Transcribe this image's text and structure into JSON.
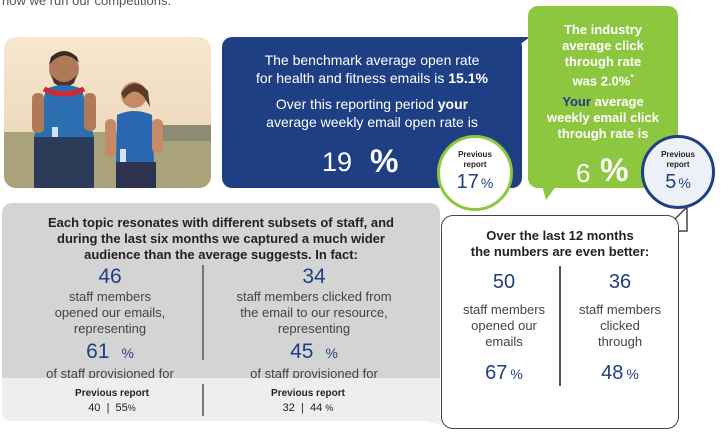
{
  "intro": {
    "text": "how we run our competitions."
  },
  "benchmark": {
    "line1": "The benchmark average open rate",
    "line2_pre": "for health and fitness emails is",
    "line2_value": "15.1%",
    "line3": "Over this reporting period",
    "line3_bold": "your",
    "line4": "average weekly email open rate is",
    "big_value": "19",
    "big_unit": "%"
  },
  "benchmark_previous": {
    "label_1": "Previous",
    "label_2": "report",
    "value": "17",
    "unit": "%"
  },
  "industry": {
    "line1": "The industry",
    "line2": "average click",
    "line3": "through rate",
    "line4_pre": "was",
    "line4_value": "2.0%",
    "line4_note": "*",
    "line5_bold": "Your",
    "line5_rest": "average",
    "line6": "weekly email click",
    "line7": "through rate is",
    "big_value": "6",
    "big_unit": "%"
  },
  "industry_previous": {
    "label_1": "Previous",
    "label_2": "report",
    "value": "5",
    "unit": "%"
  },
  "six_months": {
    "heading_1": "Each topic resonates with different subsets of staff, and",
    "heading_2": "during the last six months we captured a much wider",
    "heading_3": "audience than the average suggests. In fact:",
    "left": {
      "number": "46",
      "text_1": "staff members",
      "text_2": "opened our emails,",
      "text_3": "representing",
      "pct": "61",
      "unit": "%",
      "text_4": "of staff provisioned for"
    },
    "right": {
      "number": "34",
      "text_1": "staff members clicked from",
      "text_2": "the email to our resource,",
      "text_3": "representing",
      "pct": "45",
      "unit": "%",
      "text_4": "of staff provisioned for"
    },
    "previous_left": {
      "label": "Previous report",
      "count": "40",
      "sep": "|",
      "pct": "55",
      "unit": "%"
    },
    "previous_right": {
      "label": "Previous report",
      "count": "32",
      "sep": "|",
      "pct": "44",
      "unit": "%"
    }
  },
  "twelve_months": {
    "heading_1": "Over the last 12 months",
    "heading_2": "the numbers are even better:",
    "left": {
      "number": "50",
      "text_1": "staff members",
      "text_2": "opened our",
      "text_3": "emails",
      "pct": "67",
      "unit": "%"
    },
    "right": {
      "number": "36",
      "text_1": "staff members",
      "text_2": "clicked",
      "text_3": "through",
      "pct": "48",
      "unit": "%"
    }
  },
  "colors": {
    "navy": "#1f3f84",
    "green": "#8dc63f",
    "grey": "#d4d4d4"
  }
}
